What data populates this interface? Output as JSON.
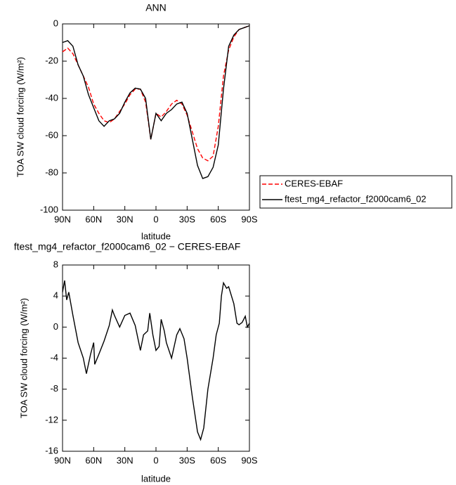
{
  "chart_data": [
    {
      "type": "line",
      "title": "ANN",
      "xlabel": "latitude",
      "ylabel": "TOA SW cloud forcing (W/m²)",
      "x": [
        90,
        85,
        80,
        75,
        70,
        65,
        60,
        55,
        50,
        45,
        40,
        35,
        30,
        25,
        20,
        15,
        10,
        5,
        0,
        -5,
        -10,
        -15,
        -20,
        -25,
        -30,
        -35,
        -40,
        -45,
        -50,
        -55,
        -60,
        -65,
        -70,
        -75,
        -80,
        -85,
        -90
      ],
      "xlim": [
        90,
        -90
      ],
      "xticks": [
        {
          "value": 90,
          "label": "90N"
        },
        {
          "value": 60,
          "label": "60N"
        },
        {
          "value": 30,
          "label": "30N"
        },
        0,
        {
          "value": -30,
          "label": "30S"
        },
        {
          "value": -60,
          "label": "60S"
        },
        {
          "value": -90,
          "label": "90S"
        }
      ],
      "ylim": [
        -100,
        0
      ],
      "yticks": [
        -100,
        -80,
        -60,
        -40,
        -20,
        0
      ],
      "legend": "right",
      "series": [
        {
          "name": "CERES-EBAF",
          "color": "#ff0000",
          "linestyle": "dashed",
          "values": [
            -15,
            -13,
            -16,
            -22,
            -28,
            -34,
            -43,
            -48,
            -52,
            -53,
            -51,
            -47,
            -43,
            -38,
            -35,
            -35,
            -42,
            -62,
            -48,
            -50,
            -47,
            -43,
            -41,
            -43,
            -49,
            -58,
            -67,
            -72,
            -73.5,
            -71,
            -55,
            -28,
            -14,
            -7,
            -3,
            -2,
            -1
          ]
        },
        {
          "name": "ftest_mg4_refactor_f2000cam6_02",
          "color": "#000000",
          "linestyle": "solid",
          "values": [
            -10,
            -9,
            -12,
            -22,
            -28,
            -38,
            -45,
            -52,
            -55,
            -52,
            -51,
            -48,
            -42,
            -37,
            -34.5,
            -35,
            -40,
            -62,
            -48,
            -52,
            -48,
            -46,
            -43,
            -42,
            -48,
            -62,
            -76,
            -83,
            -82,
            -77,
            -65,
            -35,
            -12,
            -6,
            -3,
            -2,
            -1
          ]
        }
      ]
    },
    {
      "type": "line",
      "title": "ftest_mg4_refactor_f2000cam6_02 − CERES-EBAF",
      "xlabel": "latitude",
      "ylabel": "TOA SW cloud forcing (W/m²)",
      "x": [
        90,
        88,
        86,
        84,
        80,
        75,
        70,
        67,
        63,
        60,
        59,
        55,
        50,
        45,
        42,
        40,
        35,
        30,
        25,
        20,
        15,
        12,
        8,
        6,
        3,
        0,
        -3,
        -5,
        -8,
        -10,
        -15,
        -20,
        -23,
        -27,
        -30,
        -35,
        -40,
        -43,
        -46,
        -50,
        -55,
        -58,
        -61,
        -63,
        -65,
        -68,
        -70,
        -75,
        -78,
        -80,
        -83,
        -86,
        -88,
        -90
      ],
      "xlim": [
        90,
        -90
      ],
      "xticks": [
        {
          "value": 90,
          "label": "90N"
        },
        {
          "value": 60,
          "label": "60N"
        },
        {
          "value": 30,
          "label": "30N"
        },
        0,
        {
          "value": -30,
          "label": "30S"
        },
        {
          "value": -60,
          "label": "60S"
        },
        {
          "value": -90,
          "label": "90S"
        }
      ],
      "ylim": [
        -16,
        8
      ],
      "yticks": [
        -16,
        -12,
        -8,
        -4,
        0,
        4,
        8
      ],
      "series": [
        {
          "color": "#000000",
          "linestyle": "solid",
          "values": [
            4.5,
            6,
            3.5,
            4.5,
            1.5,
            -2,
            -4,
            -6,
            -3.5,
            -2,
            -4.8,
            -3.5,
            -1.8,
            0.2,
            2.2,
            1.5,
            0,
            1.5,
            1.8,
            0.2,
            -3,
            -1,
            -0.5,
            1.8,
            -1,
            -3,
            -2.5,
            1,
            -0.5,
            -2,
            -4,
            -1,
            -0.2,
            -1.5,
            -4,
            -9,
            -13.5,
            -14.5,
            -13,
            -8,
            -4,
            -1,
            0.5,
            4,
            5.7,
            5,
            5.2,
            3,
            0.5,
            0.3,
            0.6,
            1.4,
            0,
            0.5
          ]
        }
      ]
    }
  ]
}
